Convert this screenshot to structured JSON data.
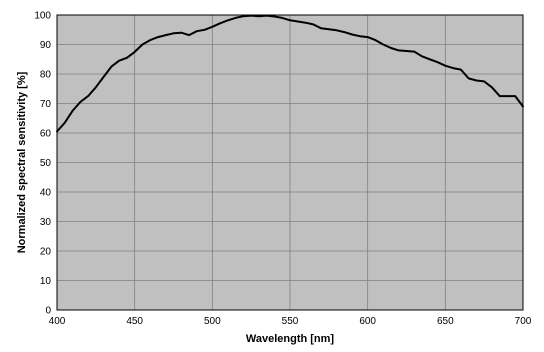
{
  "chart_data": {
    "type": "line",
    "title": "",
    "xlabel": "Wavelength [nm]",
    "ylabel": "Normalized spectral sensitivity [%]",
    "xlim": [
      400,
      700
    ],
    "ylim": [
      0,
      100
    ],
    "x_ticks": [
      "400",
      "450",
      "500",
      "550",
      "600",
      "650",
      "700"
    ],
    "y_ticks": [
      "0",
      "10",
      "20",
      "30",
      "40",
      "50",
      "60",
      "70",
      "80",
      "90",
      "100"
    ],
    "grid": true,
    "legend": "none",
    "colors": {
      "plot_background": "#c0c0c0",
      "grid": "#808080",
      "line": "#000000"
    },
    "series": [
      {
        "x": [
          400,
          405,
          410,
          415,
          420,
          425,
          430,
          435,
          440,
          445,
          450,
          455,
          460,
          465,
          470,
          475,
          480,
          485,
          490,
          495,
          500,
          505,
          510,
          515,
          520,
          525,
          530,
          535,
          540,
          545,
          550,
          555,
          560,
          565,
          570,
          575,
          580,
          585,
          590,
          595,
          600,
          605,
          610,
          615,
          620,
          625,
          630,
          635,
          640,
          645,
          650,
          655,
          660,
          665,
          670,
          675,
          680,
          685,
          690,
          695,
          700
        ],
        "y": [
          60.5,
          63.5,
          67.5,
          70.5,
          72.5,
          75.5,
          79,
          82.5,
          84.5,
          85.5,
          87.5,
          90,
          91.5,
          92.5,
          93.2,
          93.8,
          94,
          93.2,
          94.5,
          95,
          96,
          97.2,
          98.2,
          99,
          99.6,
          99.8,
          99.6,
          99.8,
          99.5,
          99,
          98.2,
          97.8,
          97.4,
          96.8,
          95.5,
          95.2,
          94.8,
          94.2,
          93.4,
          92.8,
          92.5,
          91.5,
          90,
          88.8,
          88,
          87.8,
          87.6,
          86,
          85,
          84,
          82.8,
          82,
          81.5,
          78.5,
          77.8,
          77.5,
          75.5,
          72.5,
          72.5,
          72.5,
          69
        ]
      }
    ]
  }
}
